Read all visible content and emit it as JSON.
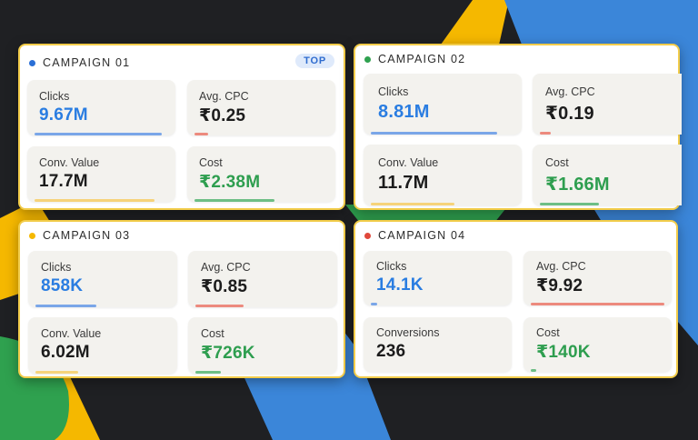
{
  "colors": {
    "background": "#1f2023",
    "blue": "#3b86d9",
    "yellow": "#f5b800",
    "green": "#2fa14f",
    "red": "#e0483b",
    "card_border": "#f2cc4a",
    "value_blue": "#2a7de1",
    "value_green": "#2e9e4f",
    "value_dark": "#1c1c1c"
  },
  "campaigns": [
    {
      "title": "CAMPAIGN 01",
      "dot_color": "#2a6fd6",
      "badge": "TOP",
      "metrics": [
        {
          "label": "Clicks",
          "value": "9.67M",
          "value_color": "#2a7de1",
          "bar_color": "#7aa6e8",
          "bar_fraction": 0.95
        },
        {
          "label": "Avg. CPC",
          "value": "₹0.25",
          "value_color": "#1c1c1c",
          "bar_color": "#ec8a7e",
          "bar_fraction": 0.1
        },
        {
          "label": "Conv. Value",
          "value": "17.7M",
          "value_color": "#1c1c1c",
          "bar_color": "#f6d37a",
          "bar_fraction": 0.9
        },
        {
          "label": "Cost",
          "value": "₹2.38M",
          "value_color": "#2e9e4f",
          "bar_color": "#6dbe85",
          "bar_fraction": 0.6
        }
      ]
    },
    {
      "title": "CAMPAIGN 02",
      "dot_color": "#2fa14f",
      "badge": "",
      "metrics": [
        {
          "label": "Clicks",
          "value": "8.81M",
          "value_color": "#2a7de1",
          "bar_color": "#7aa6e8",
          "bar_fraction": 0.88
        },
        {
          "label": "Avg. CPC",
          "value": "₹0.19",
          "value_color": "#1c1c1c",
          "bar_color": "#ec8a7e",
          "bar_fraction": 0.08
        },
        {
          "label": "Conv. Value",
          "value": "11.7M",
          "value_color": "#1c1c1c",
          "bar_color": "#f6d37a",
          "bar_fraction": 0.58
        },
        {
          "label": "Cost",
          "value": "₹1.66M",
          "value_color": "#2e9e4f",
          "bar_color": "#6dbe85",
          "bar_fraction": 0.44
        }
      ]
    },
    {
      "title": "CAMPAIGN 03",
      "dot_color": "#f5b800",
      "badge": "",
      "metrics": [
        {
          "label": "Clicks",
          "value": "858K",
          "value_color": "#2a7de1",
          "bar_color": "#7aa6e8",
          "bar_fraction": 0.45
        },
        {
          "label": "Avg. CPC",
          "value": "₹0.85",
          "value_color": "#1c1c1c",
          "bar_color": "#ec8a7e",
          "bar_fraction": 0.36
        },
        {
          "label": "Conv. Value",
          "value": "6.02M",
          "value_color": "#1c1c1c",
          "bar_color": "#f6d37a",
          "bar_fraction": 0.32
        },
        {
          "label": "Cost",
          "value": "₹726K",
          "value_color": "#2e9e4f",
          "bar_color": "#6dbe85",
          "bar_fraction": 0.19
        }
      ]
    },
    {
      "title": "CAMPAIGN 04",
      "dot_color": "#e0483b",
      "badge": "",
      "metrics": [
        {
          "label": "Clicks",
          "value": "14.1K",
          "value_color": "#2a7de1",
          "bar_color": "#7aa6e8",
          "bar_fraction": 0.05
        },
        {
          "label": "Avg. CPC",
          "value": "₹9.92",
          "value_color": "#1c1c1c",
          "bar_color": "#ec8a7e",
          "bar_fraction": 1.0
        },
        {
          "label": "Conversions",
          "value": "236",
          "value_color": "#1c1c1c",
          "bar_color": "#f6d37a",
          "bar_fraction": 0.0
        },
        {
          "label": "Cost",
          "value": "₹140K",
          "value_color": "#2e9e4f",
          "bar_color": "#6dbe85",
          "bar_fraction": 0.04
        }
      ]
    }
  ]
}
